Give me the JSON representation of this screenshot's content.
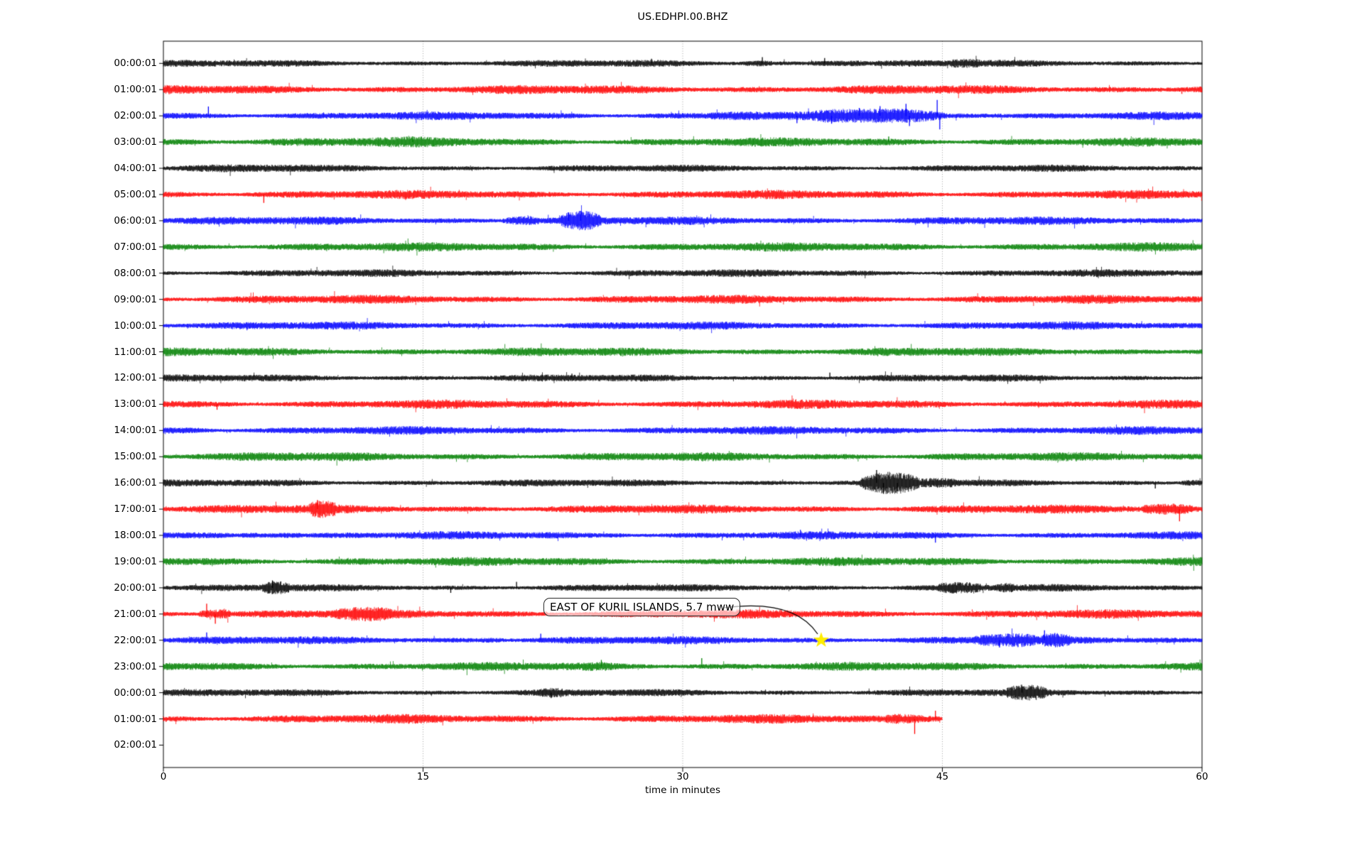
{
  "chart_data": {
    "type": "line",
    "subtype": "seismogram-dayplot",
    "title": "US.EDHPI.00.BHZ",
    "xlabel": "time in minutes",
    "xlim": [
      0,
      60
    ],
    "xticks": [
      0,
      15,
      30,
      45,
      60
    ],
    "xtick_labels": [
      "0",
      "15",
      "30",
      "45",
      "60"
    ],
    "gridlines_minutes": [
      15,
      30,
      45
    ],
    "grid_color": "#9a9a9a",
    "frame_color": "#000000",
    "trace_color_cycle": [
      "#000000",
      "#ff0000",
      "#0000ff",
      "#008000"
    ],
    "minutes_per_row": 60,
    "annotation": {
      "text": "EAST OF KURIL ISLANDS, 5.7 mww",
      "row_label": "22:00:01",
      "event_minute": 38.0,
      "marker": "yellow-star",
      "marker_color": "#ffed00",
      "arrow_color": "#000000"
    },
    "bursts_format": "[start_min, end_min, amplitude_mult]",
    "spikes_format": "[minute, amplitude_mult, direction(1=up,-1=down)]",
    "rows": [
      {
        "label": "00:00:01",
        "color": "#000000",
        "amp": 3.4,
        "end": 60,
        "bursts": [
          [
            33.5,
            35.2,
            1.5
          ],
          [
            37.2,
            40.5,
            1.7
          ],
          [
            45.4,
            47.2,
            1.5
          ]
        ],
        "spikes": [
          [
            34.6,
            2.6,
            1
          ],
          [
            28.2,
            1.9,
            1
          ],
          [
            38.2,
            2.2,
            1
          ]
        ]
      },
      {
        "label": "01:00:01",
        "color": "#ff0000",
        "amp": 4.4,
        "end": 60,
        "bursts": [],
        "spikes": []
      },
      {
        "label": "02:00:01",
        "color": "#0000ff",
        "amp": 4.0,
        "end": 60,
        "bursts": [
          [
            31.5,
            34.5,
            1.5
          ],
          [
            37.5,
            45.3,
            2.2
          ],
          [
            45.3,
            48.5,
            1.4
          ]
        ],
        "spikes": [
          [
            2.6,
            3.3,
            1
          ],
          [
            36.6,
            2.6,
            -1
          ],
          [
            38.6,
            2.8,
            -1
          ],
          [
            40.2,
            2.8,
            1
          ],
          [
            41.4,
            3.4,
            1
          ],
          [
            42.9,
            4.2,
            1
          ],
          [
            43.1,
            3.6,
            -1
          ],
          [
            44.7,
            5.6,
            1
          ],
          [
            44.85,
            4.8,
            -1
          ]
        ]
      },
      {
        "label": "03:00:01",
        "color": "#008000",
        "amp": 4.3,
        "end": 60,
        "bursts": [
          [
            0,
            20,
            1.15
          ]
        ],
        "spikes": [
          [
            14.4,
            1.9,
            1
          ],
          [
            41.9,
            1.8,
            1
          ]
        ]
      },
      {
        "label": "04:00:01",
        "color": "#000000",
        "amp": 3.4,
        "end": 60,
        "bursts": [
          [
            0,
            9,
            1.2
          ]
        ],
        "spikes": []
      },
      {
        "label": "05:00:01",
        "color": "#ff0000",
        "amp": 4.2,
        "end": 60,
        "bursts": [],
        "spikes": [
          [
            5.8,
            2.8,
            -1
          ]
        ]
      },
      {
        "label": "06:00:01",
        "color": "#0000ff",
        "amp": 4.0,
        "end": 60,
        "bursts": [
          [
            19.6,
            21.7,
            2.2
          ],
          [
            22.9,
            25.3,
            2.6
          ]
        ],
        "spikes": [
          [
            23.4,
            3.0,
            1
          ],
          [
            24.1,
            3.5,
            1
          ]
        ]
      },
      {
        "label": "07:00:01",
        "color": "#008000",
        "amp": 4.3,
        "end": 60,
        "bursts": [],
        "spikes": []
      },
      {
        "label": "08:00:01",
        "color": "#000000",
        "amp": 3.6,
        "end": 60,
        "bursts": [],
        "spikes": []
      },
      {
        "label": "09:00:01",
        "color": "#ff0000",
        "amp": 4.2,
        "end": 60,
        "bursts": [],
        "spikes": []
      },
      {
        "label": "10:00:01",
        "color": "#0000ff",
        "amp": 3.9,
        "end": 60,
        "bursts": [],
        "spikes": []
      },
      {
        "label": "11:00:01",
        "color": "#008000",
        "amp": 4.2,
        "end": 60,
        "bursts": [],
        "spikes": []
      },
      {
        "label": "12:00:01",
        "color": "#000000",
        "amp": 3.5,
        "end": 60,
        "bursts": [],
        "spikes": [
          [
            23.6,
            1.8,
            1
          ],
          [
            38.5,
            2.2,
            1
          ]
        ]
      },
      {
        "label": "13:00:01",
        "color": "#ff0000",
        "amp": 4.3,
        "end": 60,
        "bursts": [],
        "spikes": [
          [
            3.1,
            1.8,
            -1
          ]
        ]
      },
      {
        "label": "14:00:01",
        "color": "#0000ff",
        "amp": 4.0,
        "end": 60,
        "bursts": [
          [
            0,
            3,
            1.25
          ]
        ],
        "spikes": []
      },
      {
        "label": "15:00:01",
        "color": "#008000",
        "amp": 4.2,
        "end": 60,
        "bursts": [
          [
            4,
            9,
            1.15
          ]
        ],
        "spikes": []
      },
      {
        "label": "16:00:01",
        "color": "#000000",
        "amp": 3.5,
        "end": 60,
        "bursts": [
          [
            40.2,
            43.7,
            3.2
          ],
          [
            43.7,
            45.8,
            1.6
          ],
          [
            58.8,
            60,
            1.8
          ]
        ],
        "spikes": [
          [
            41.2,
            5.2,
            1
          ],
          [
            41.6,
            4.4,
            -1
          ],
          [
            42.4,
            3.4,
            -1
          ],
          [
            57.3,
            2.2,
            -1
          ]
        ]
      },
      {
        "label": "17:00:01",
        "color": "#ff0000",
        "amp": 4.3,
        "end": 60,
        "bursts": [
          [
            8.4,
            10,
            2.0
          ],
          [
            56.5,
            59.5,
            1.9
          ]
        ],
        "spikes": [
          [
            8.9,
            3.0,
            1
          ],
          [
            58.7,
            4.0,
            -1
          ]
        ]
      },
      {
        "label": "18:00:01",
        "color": "#0000ff",
        "amp": 3.9,
        "end": 60,
        "bursts": [
          [
            4.5,
            8,
            1.6
          ],
          [
            25.5,
            27,
            1.3
          ]
        ],
        "spikes": [
          [
            36.8,
            2.0,
            1
          ],
          [
            44.6,
            2.6,
            -1
          ]
        ]
      },
      {
        "label": "19:00:01",
        "color": "#008000",
        "amp": 4.2,
        "end": 60,
        "bursts": [
          [
            9,
            15,
            1.15
          ]
        ],
        "spikes": []
      },
      {
        "label": "20:00:01",
        "color": "#000000",
        "amp": 3.5,
        "end": 60,
        "bursts": [
          [
            5.7,
            7.3,
            2.1
          ],
          [
            44.7,
            47.3,
            1.9
          ],
          [
            48.1,
            49.2,
            1.6
          ]
        ],
        "spikes": [
          [
            6.3,
            3.0,
            1
          ],
          [
            16.6,
            2.0,
            -1
          ],
          [
            20.4,
            2.4,
            1
          ]
        ]
      },
      {
        "label": "21:00:01",
        "color": "#ff0000",
        "amp": 4.3,
        "end": 60,
        "bursts": [
          [
            2.0,
            3.9,
            2.4
          ],
          [
            9.8,
            13.2,
            1.6
          ]
        ],
        "spikes": [
          [
            2.5,
            3.4,
            1
          ],
          [
            3.0,
            3.2,
            -1
          ]
        ]
      },
      {
        "label": "22:00:01",
        "color": "#0000ff",
        "amp": 3.9,
        "end": 60,
        "bursts": [
          [
            18.3,
            19.7,
            1.4
          ],
          [
            46.8,
            50.4,
            1.9
          ],
          [
            50.7,
            52.4,
            1.7
          ]
        ],
        "spikes": [
          [
            2.5,
            2.8,
            1
          ],
          [
            21.8,
            2.4,
            1
          ],
          [
            48.3,
            2.6,
            -1
          ],
          [
            50.9,
            3.6,
            1
          ]
        ]
      },
      {
        "label": "23:00:01",
        "color": "#008000",
        "amp": 4.2,
        "end": 60,
        "bursts": [
          [
            24,
            26.2,
            1.2
          ]
        ],
        "spikes": [
          [
            25.3,
            2.2,
            1
          ],
          [
            31.1,
            2.8,
            1
          ]
        ]
      },
      {
        "label": "00:00:01",
        "color": "#000000",
        "amp": 3.5,
        "end": 60,
        "bursts": [
          [
            21.7,
            23.3,
            1.4
          ],
          [
            48.7,
            51.1,
            2.2
          ]
        ],
        "spikes": [
          [
            22.4,
            2.2,
            -1
          ],
          [
            49.6,
            2.6,
            1
          ]
        ]
      },
      {
        "label": "01:00:01",
        "color": "#ff0000",
        "amp": 4.4,
        "end": 45,
        "bursts": [
          [
            41.7,
            45,
            1.8
          ]
        ],
        "spikes": [
          [
            43.4,
            4.8,
            -1
          ],
          [
            44.6,
            2.6,
            1
          ]
        ]
      },
      {
        "label": "02:00:01",
        "color": "#0000ff",
        "amp": 0,
        "end": 0,
        "empty": true,
        "bursts": [],
        "spikes": []
      }
    ]
  }
}
